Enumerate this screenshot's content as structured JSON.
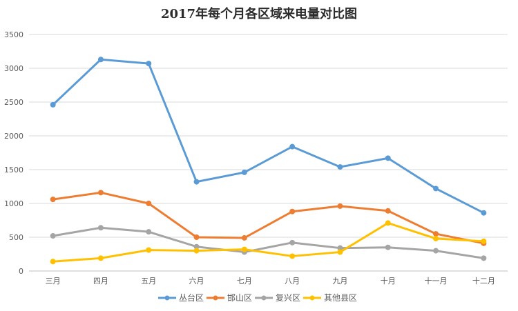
{
  "chart_data": {
    "type": "line",
    "title": "2017年每个月各区域来电量对比图",
    "categories": [
      "三月",
      "四月",
      "五月",
      "六月",
      "七月",
      "八月",
      "九月",
      "十月",
      "十一月",
      "十二月"
    ],
    "ylim": [
      0,
      3500
    ],
    "yticks": [
      0,
      500,
      1000,
      1500,
      2000,
      2500,
      3000,
      3500
    ],
    "grid": true,
    "legend_position": "bottom",
    "series": [
      {
        "name": "丛台区",
        "color": "#5b9bd5",
        "values": [
          2460,
          3130,
          3070,
          1320,
          1460,
          1840,
          1540,
          1670,
          1220,
          860
        ]
      },
      {
        "name": "邯山区",
        "color": "#ed7d31",
        "values": [
          1060,
          1160,
          1000,
          500,
          490,
          880,
          960,
          890,
          550,
          410
        ]
      },
      {
        "name": "复兴区",
        "color": "#a5a5a5",
        "values": [
          520,
          640,
          580,
          360,
          280,
          420,
          340,
          350,
          300,
          190
        ]
      },
      {
        "name": "其他县区",
        "color": "#ffc000",
        "values": [
          140,
          190,
          310,
          300,
          320,
          220,
          280,
          710,
          480,
          440
        ]
      }
    ]
  }
}
